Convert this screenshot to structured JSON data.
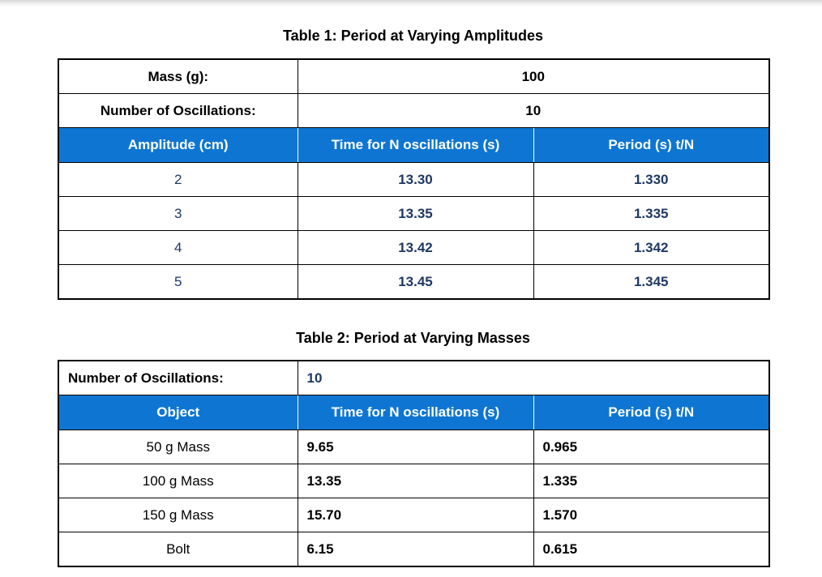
{
  "colors": {
    "header_bg": "#0e76d2",
    "header_text": "#ffffff",
    "navy": "#1f3864",
    "border": "#000000",
    "page_bg": "#ffffff"
  },
  "table1": {
    "title": "Table 1: Period at Varying Amplitudes",
    "info_rows": [
      {
        "label": "Mass (g):",
        "value": "100"
      },
      {
        "label": "Number of Oscillations:",
        "value": "10"
      }
    ],
    "headers": [
      "Amplitude (cm)",
      "Time for N oscillations (s)",
      "Period (s) t/N"
    ],
    "rows": [
      [
        "2",
        "13.30",
        "1.330"
      ],
      [
        "3",
        "13.35",
        "1.335"
      ],
      [
        "4",
        "13.42",
        "1.342"
      ],
      [
        "5",
        "13.45",
        "1.345"
      ]
    ]
  },
  "table2": {
    "title": "Table 2: Period at Varying Masses",
    "info_rows": [
      {
        "label": "Number of Oscillations:",
        "value": "10"
      }
    ],
    "headers": [
      "Object",
      "Time for N oscillations (s)",
      "Period (s) t/N"
    ],
    "rows": [
      [
        "50 g Mass",
        "9.65",
        "0.965"
      ],
      [
        "100 g Mass",
        "13.35",
        "1.335"
      ],
      [
        "150 g Mass",
        "15.70",
        "1.570"
      ],
      [
        "Bolt",
        "6.15",
        "0.615"
      ]
    ]
  }
}
